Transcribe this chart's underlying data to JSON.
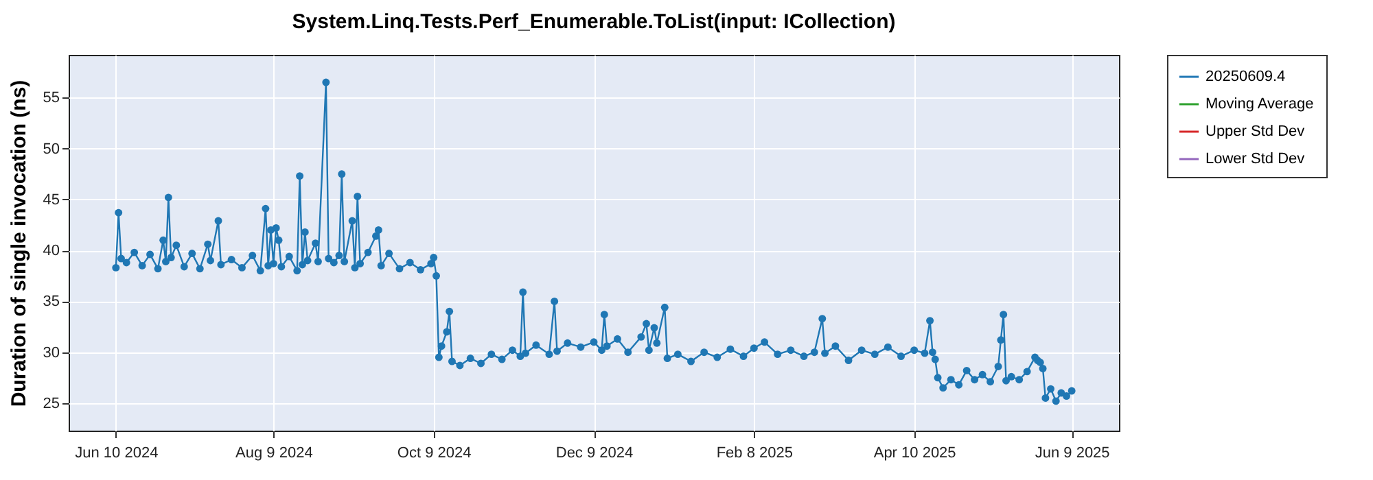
{
  "chart_data": {
    "type": "line",
    "title": "System.Linq.Tests.Perf_Enumerable.ToList(input: ICollection)",
    "ylabel": "Duration of single invocation (ns)",
    "xlim": [
      "2024-05-23",
      "2025-06-27"
    ],
    "xticks": [
      {
        "value": "2024-06-10",
        "label": "Jun 10 2024"
      },
      {
        "value": "2024-08-09",
        "label": "Aug 9 2024"
      },
      {
        "value": "2024-10-09",
        "label": "Oct 9 2024"
      },
      {
        "value": "2024-12-09",
        "label": "Dec 9 2024"
      },
      {
        "value": "2025-02-08",
        "label": "Feb 8 2025"
      },
      {
        "value": "2025-04-10",
        "label": "Apr 10 2025"
      },
      {
        "value": "2025-06-09",
        "label": "Jun 9 2025"
      }
    ],
    "ylim": [
      22.3,
      59.2
    ],
    "yticks": [
      25,
      30,
      35,
      40,
      45,
      50,
      55
    ],
    "grid": true,
    "legend": "right",
    "marker": "circle",
    "series": [
      {
        "name": "20250609.4",
        "color": "#1f77b4",
        "x": [
          "2024-06-10",
          "2024-06-11",
          "2024-06-12",
          "2024-06-14",
          "2024-06-17",
          "2024-06-20",
          "2024-06-23",
          "2024-06-26",
          "2024-06-28",
          "2024-06-29",
          "2024-06-30",
          "2024-07-01",
          "2024-07-03",
          "2024-07-06",
          "2024-07-09",
          "2024-07-12",
          "2024-07-15",
          "2024-07-16",
          "2024-07-19",
          "2024-07-20",
          "2024-07-24",
          "2024-07-28",
          "2024-08-01",
          "2024-08-04",
          "2024-08-06",
          "2024-08-07",
          "2024-08-08",
          "2024-08-09",
          "2024-08-10",
          "2024-08-11",
          "2024-08-12",
          "2024-08-15",
          "2024-08-18",
          "2024-08-19",
          "2024-08-20",
          "2024-08-21",
          "2024-08-22",
          "2024-08-25",
          "2024-08-26",
          "2024-08-29",
          "2024-08-30",
          "2024-09-01",
          "2024-09-03",
          "2024-09-04",
          "2024-09-05",
          "2024-09-08",
          "2024-09-09",
          "2024-09-10",
          "2024-09-11",
          "2024-09-14",
          "2024-09-17",
          "2024-09-18",
          "2024-09-19",
          "2024-09-22",
          "2024-09-26",
          "2024-09-30",
          "2024-10-04",
          "2024-10-08",
          "2024-10-09",
          "2024-10-10",
          "2024-10-11",
          "2024-10-12",
          "2024-10-14",
          "2024-10-15",
          "2024-10-16",
          "2024-10-19",
          "2024-10-23",
          "2024-10-27",
          "2024-10-31",
          "2024-11-04",
          "2024-11-08",
          "2024-11-11",
          "2024-11-12",
          "2024-11-13",
          "2024-11-17",
          "2024-11-22",
          "2024-11-24",
          "2024-11-25",
          "2024-11-29",
          "2024-12-04",
          "2024-12-09",
          "2024-12-12",
          "2024-12-13",
          "2024-12-14",
          "2024-12-18",
          "2024-12-22",
          "2024-12-27",
          "2024-12-29",
          "2024-12-30",
          "2025-01-01",
          "2025-01-02",
          "2025-01-05",
          "2025-01-06",
          "2025-01-10",
          "2025-01-15",
          "2025-01-20",
          "2025-01-25",
          "2025-01-30",
          "2025-02-04",
          "2025-02-08",
          "2025-02-12",
          "2025-02-17",
          "2025-02-22",
          "2025-02-27",
          "2025-03-03",
          "2025-03-06",
          "2025-03-07",
          "2025-03-11",
          "2025-03-16",
          "2025-03-21",
          "2025-03-26",
          "2025-03-31",
          "2025-04-05",
          "2025-04-10",
          "2025-04-14",
          "2025-04-16",
          "2025-04-17",
          "2025-04-18",
          "2025-04-19",
          "2025-04-21",
          "2025-04-24",
          "2025-04-27",
          "2025-04-30",
          "2025-05-03",
          "2025-05-06",
          "2025-05-09",
          "2025-05-12",
          "2025-05-13",
          "2025-05-14",
          "2025-05-15",
          "2025-05-17",
          "2025-05-20",
          "2025-05-23",
          "2025-05-26",
          "2025-05-27",
          "2025-05-28",
          "2025-05-29",
          "2025-05-30",
          "2025-06-01",
          "2025-06-03",
          "2025-06-05",
          "2025-06-07",
          "2025-06-09"
        ],
        "values": [
          38.3,
          43.7,
          39.2,
          38.8,
          39.8,
          38.5,
          39.6,
          38.2,
          41.0,
          38.9,
          45.2,
          39.3,
          40.5,
          38.4,
          39.7,
          38.2,
          40.6,
          39.0,
          42.9,
          38.6,
          39.1,
          38.3,
          39.5,
          38.0,
          44.1,
          38.5,
          42.0,
          38.7,
          42.2,
          41.0,
          38.4,
          39.4,
          38.0,
          47.3,
          38.6,
          41.8,
          39.0,
          40.7,
          38.9,
          56.5,
          39.2,
          38.8,
          39.5,
          47.5,
          38.9,
          42.9,
          38.3,
          45.3,
          38.7,
          39.8,
          41.4,
          42.0,
          38.5,
          39.7,
          38.2,
          38.8,
          38.1,
          38.7,
          39.3,
          37.5,
          29.5,
          30.6,
          32.0,
          34.0,
          29.1,
          28.7,
          29.4,
          28.9,
          29.8,
          29.3,
          30.2,
          29.6,
          35.9,
          29.9,
          30.7,
          29.8,
          35.0,
          30.1,
          30.9,
          30.5,
          31.0,
          30.2,
          33.7,
          30.6,
          31.3,
          30.0,
          31.5,
          32.8,
          30.2,
          32.4,
          30.9,
          34.4,
          29.4,
          29.8,
          29.1,
          30.0,
          29.5,
          30.3,
          29.6,
          30.4,
          31.0,
          29.8,
          30.2,
          29.6,
          30.0,
          33.3,
          29.9,
          30.6,
          29.2,
          30.2,
          29.8,
          30.5,
          29.6,
          30.2,
          29.9,
          33.1,
          30.0,
          29.3,
          27.5,
          26.5,
          27.3,
          26.8,
          28.2,
          27.3,
          27.8,
          27.1,
          28.6,
          31.2,
          33.7,
          27.2,
          27.6,
          27.3,
          28.1,
          29.5,
          29.2,
          29.0,
          28.4,
          25.5,
          26.4,
          25.2,
          26.0,
          25.7,
          26.2
        ]
      },
      {
        "name": "Moving Average",
        "color": "#2ca02c"
      },
      {
        "name": "Upper Std Dev",
        "color": "#d62728"
      },
      {
        "name": "Lower Std Dev",
        "color": "#9467bd"
      }
    ]
  }
}
